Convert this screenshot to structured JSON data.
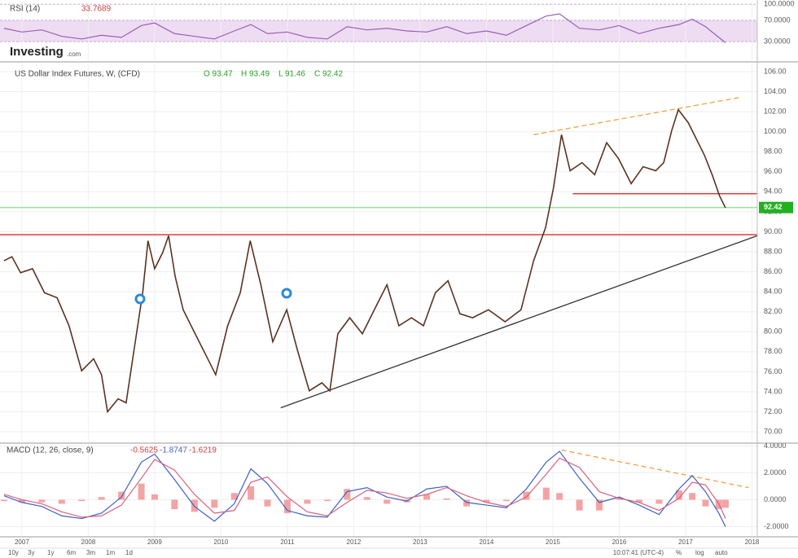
{
  "logo": {
    "name": "Investing",
    "suffix": ".com"
  },
  "toolbar": {
    "ranges": [
      "10y",
      "3y",
      "1y",
      "6m",
      "3m",
      "1m",
      "1d"
    ],
    "time": "10:07:41 (UTC-4)",
    "options": [
      "%",
      "log",
      "auto"
    ]
  },
  "chart_data": [
    {
      "type": "line",
      "title": "RSI (14)",
      "title_value": "33.7689",
      "xlim": [
        2006.67,
        2018.08
      ],
      "ylim": [
        -5,
        105
      ],
      "yticks": [
        {
          "value": 100,
          "label": "100.0000"
        },
        {
          "value": 70,
          "label": "70.0000"
        },
        {
          "value": 30,
          "label": "30.0000"
        }
      ],
      "grid": true,
      "band": [
        30,
        70
      ],
      "band_color": "#eedcf3",
      "x": [
        2006.73,
        2007.0,
        2007.3,
        2007.6,
        2007.9,
        2008.2,
        2008.5,
        2008.8,
        2009.0,
        2009.3,
        2009.6,
        2009.9,
        2010.2,
        2010.45,
        2010.7,
        2011.0,
        2011.3,
        2011.6,
        2011.9,
        2012.2,
        2012.5,
        2012.8,
        2013.1,
        2013.4,
        2013.7,
        2014.0,
        2014.3,
        2014.6,
        2014.9,
        2015.1,
        2015.4,
        2015.7,
        2016.0,
        2016.3,
        2016.6,
        2016.9,
        2017.1,
        2017.3,
        2017.5,
        2017.6
      ],
      "series": [
        {
          "name": "RSI",
          "color": "#9b5fb5",
          "values": [
            55,
            48,
            52,
            40,
            35,
            42,
            38,
            60,
            65,
            45,
            40,
            35,
            50,
            62,
            45,
            48,
            38,
            35,
            58,
            52,
            55,
            50,
            48,
            58,
            45,
            50,
            42,
            60,
            78,
            82,
            55,
            52,
            60,
            45,
            55,
            62,
            72,
            58,
            38,
            28
          ]
        }
      ]
    },
    {
      "type": "line",
      "title": "US Dollar Index Futures, W, (CFD)",
      "ohlc": [
        "O 93.47",
        "H 93.49",
        "L 91.46",
        "C 92.42"
      ],
      "xlim": [
        2006.67,
        2018.08
      ],
      "ylim": [
        68.95,
        106.81
      ],
      "grid": true,
      "yticks": [
        {
          "value": 70,
          "label": "70.00"
        },
        {
          "value": 72,
          "label": "72.00"
        },
        {
          "value": 74,
          "label": "74.00"
        },
        {
          "value": 76,
          "label": "76.00"
        },
        {
          "value": 78,
          "label": "78.00"
        },
        {
          "value": 80,
          "label": "80.00"
        },
        {
          "value": 82,
          "label": "82.00"
        },
        {
          "value": 84,
          "label": "84.00"
        },
        {
          "value": 86,
          "label": "86.00"
        },
        {
          "value": 88,
          "label": "88.00"
        },
        {
          "value": 90,
          "label": "90.00"
        },
        {
          "value": 92,
          "label": "92.00"
        },
        {
          "value": 94,
          "label": "94.00"
        },
        {
          "value": 96,
          "label": "96.00"
        },
        {
          "value": 98,
          "label": "98.00"
        },
        {
          "value": 100,
          "label": "100.00"
        },
        {
          "value": 102,
          "label": "102.00"
        },
        {
          "value": 104,
          "label": "104.00"
        },
        {
          "value": 106,
          "label": "106.00"
        }
      ],
      "last_price": 92.42,
      "last_price_color": "#22b022",
      "hlines": [
        {
          "value": 92.42,
          "color": "#9be39b",
          "x_from": 2006.67
        },
        {
          "value": 89.7,
          "color": "#e03a3a",
          "x_from": 2006.67
        },
        {
          "value": 93.8,
          "color": "#e03a3a",
          "x_from": 2015.3
        }
      ],
      "trendlines": [
        {
          "x": [
            2010.9,
            2018.08
          ],
          "values": [
            72.4,
            89.6
          ],
          "color": "#333333",
          "dash": false
        },
        {
          "x": [
            2014.71,
            2017.8
          ],
          "values": [
            99.7,
            103.4
          ],
          "color": "#f0a040",
          "dash": true
        }
      ],
      "x": [
        2006.73,
        2006.85,
        2006.98,
        2007.16,
        2007.34,
        2007.53,
        2007.71,
        2007.9,
        2008.08,
        2008.2,
        2008.29,
        2008.45,
        2008.57,
        2008.69,
        2008.82,
        2008.9,
        2009.0,
        2009.12,
        2009.21,
        2009.31,
        2009.43,
        2009.61,
        2009.8,
        2009.92,
        2010.1,
        2010.29,
        2010.44,
        2010.6,
        2010.78,
        2010.99,
        2011.15,
        2011.33,
        2011.52,
        2011.64,
        2011.76,
        2011.94,
        2012.13,
        2012.31,
        2012.5,
        2012.68,
        2012.87,
        2013.05,
        2013.23,
        2013.42,
        2013.6,
        2013.79,
        2014.03,
        2014.28,
        2014.52,
        2014.71,
        2014.89,
        2015.01,
        2015.13,
        2015.26,
        2015.44,
        2015.63,
        2015.81,
        2015.99,
        2016.18,
        2016.36,
        2016.55,
        2016.67,
        2016.79,
        2016.89,
        2017.04,
        2017.16,
        2017.28,
        2017.4,
        2017.51,
        2017.6
      ],
      "series": [
        {
          "name": "US Dollar Index Futures",
          "color": "#5a3322",
          "values": [
            87.1,
            87.5,
            85.9,
            86.3,
            83.9,
            83.4,
            80.6,
            76.1,
            77.3,
            75.7,
            72.0,
            73.3,
            72.9,
            78.2,
            83.9,
            89.1,
            86.3,
            87.9,
            89.6,
            85.5,
            82.2,
            79.8,
            77.3,
            75.7,
            80.6,
            83.9,
            89.1,
            84.7,
            79.0,
            82.2,
            78.2,
            74.1,
            74.9,
            74.1,
            79.8,
            81.4,
            79.8,
            82.2,
            84.7,
            80.6,
            81.4,
            80.6,
            83.9,
            85.1,
            81.8,
            81.4,
            82.2,
            81.0,
            82.2,
            87.1,
            90.4,
            94.4,
            99.7,
            96.1,
            96.9,
            95.7,
            98.9,
            97.3,
            94.8,
            96.5,
            96.1,
            96.9,
            100.1,
            102.2,
            100.9,
            99.3,
            97.7,
            95.7,
            93.6,
            92.4
          ]
        }
      ]
    },
    {
      "type": "line",
      "title": "MACD (12, 26, close, 9)",
      "title_values": [
        "-0.5625",
        "-1.8747",
        "-1.6219"
      ],
      "xlim": [
        2006.67,
        2018.08
      ],
      "ylim": [
        -2.7,
        4.15
      ],
      "grid": true,
      "yticks": [
        {
          "value": 4,
          "label": "4.0000"
        },
        {
          "value": 2,
          "label": "2.0000"
        },
        {
          "value": 0,
          "label": "0.0000"
        },
        {
          "value": -2,
          "label": "-2.0000"
        }
      ],
      "xticks": [
        2007,
        2008,
        2009,
        2010,
        2011,
        2012,
        2013,
        2014,
        2015,
        2016,
        2017,
        2018
      ],
      "trendlines": [
        {
          "x": [
            2015.13,
            2017.95
          ],
          "values": [
            3.7,
            0.9
          ],
          "color": "#f0a040",
          "dash": true
        }
      ],
      "x": [
        2006.73,
        2007.0,
        2007.3,
        2007.6,
        2007.9,
        2008.2,
        2008.5,
        2008.8,
        2009.0,
        2009.3,
        2009.6,
        2009.9,
        2010.2,
        2010.45,
        2010.7,
        2011.0,
        2011.3,
        2011.6,
        2011.9,
        2012.2,
        2012.5,
        2012.8,
        2013.1,
        2013.4,
        2013.7,
        2014.0,
        2014.3,
        2014.6,
        2014.9,
        2015.1,
        2015.4,
        2015.7,
        2016.0,
        2016.3,
        2016.6,
        2016.9,
        2017.1,
        2017.3,
        2017.5,
        2017.6
      ],
      "series": [
        {
          "name": "Histogram",
          "kind": "bar",
          "color": "#f4a3a3",
          "values": [
            -0.1,
            -0.2,
            -0.2,
            -0.3,
            -0.1,
            0.2,
            0.6,
            1.2,
            0.4,
            -0.7,
            -0.9,
            -0.6,
            0.5,
            1.0,
            -0.5,
            -1.0,
            -0.3,
            -0.1,
            0.8,
            0.2,
            -0.3,
            -0.2,
            0.4,
            0.1,
            -0.5,
            -0.2,
            -0.1,
            0.6,
            0.9,
            0.5,
            -0.8,
            -0.8,
            0.1,
            -0.2,
            -0.3,
            0.7,
            0.5,
            -0.5,
            -0.7,
            -0.6
          ]
        },
        {
          "name": "MACD",
          "color": "#3d5fc4",
          "values": [
            0.3,
            -0.2,
            -0.5,
            -1.2,
            -1.4,
            -1.0,
            0.2,
            2.8,
            3.4,
            1.5,
            -0.5,
            -1.6,
            -0.3,
            2.3,
            1.2,
            -0.8,
            -1.2,
            -1.3,
            0.6,
            0.9,
            0.2,
            -0.1,
            0.8,
            1.0,
            -0.2,
            -0.4,
            -0.6,
            0.8,
            2.8,
            3.6,
            1.6,
            -0.2,
            0.2,
            -0.4,
            -1.1,
            0.8,
            1.8,
            0.6,
            -1.0,
            -2.0
          ]
        },
        {
          "name": "Signal",
          "color": "#d9607e",
          "values": [
            0.4,
            0.0,
            -0.3,
            -0.9,
            -1.3,
            -1.2,
            -0.4,
            1.6,
            3.0,
            2.2,
            0.4,
            -1.0,
            -0.8,
            1.3,
            1.7,
            0.2,
            -0.9,
            -1.2,
            -0.2,
            0.7,
            0.5,
            0.1,
            0.4,
            0.9,
            0.3,
            -0.2,
            -0.5,
            0.2,
            1.9,
            3.1,
            2.4,
            0.6,
            0.1,
            -0.2,
            -0.8,
            0.1,
            1.3,
            1.1,
            -0.3,
            -1.4
          ]
        }
      ]
    }
  ]
}
